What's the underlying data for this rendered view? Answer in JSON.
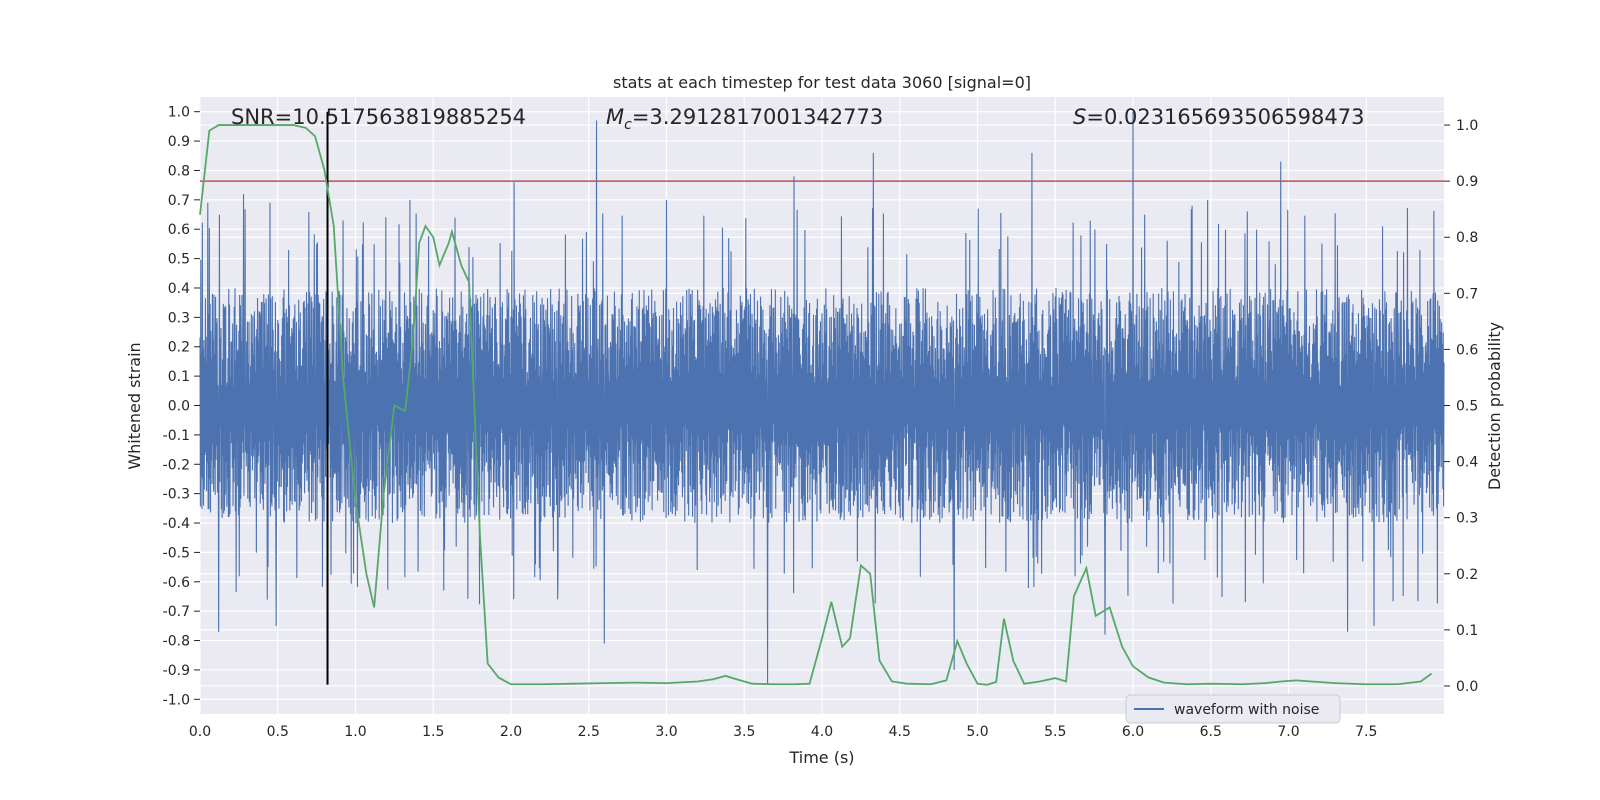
{
  "chart_data": {
    "type": "line",
    "title": "stats at each timestep for test data 3060 [signal=0]",
    "xlabel": "Time (s)",
    "ylabel_left": "Whitened strain",
    "ylabel_right": "Detection probability",
    "xlim": [
      0,
      8
    ],
    "ylim_left": [
      -1.05,
      1.05
    ],
    "ylim_right": [
      -0.05,
      1.05
    ],
    "x_ticks": [
      "0.0",
      "0.5",
      "1.0",
      "1.5",
      "2.0",
      "2.5",
      "3.0",
      "3.5",
      "4.0",
      "4.5",
      "5.0",
      "5.5",
      "6.0",
      "6.5",
      "7.0",
      "7.5"
    ],
    "y_ticks_left": [
      "1.0",
      "0.9",
      "0.8",
      "0.7",
      "0.6",
      "0.5",
      "0.4",
      "0.3",
      "0.2",
      "0.1",
      "0.0",
      "-0.1",
      "-0.2",
      "-0.3",
      "-0.4",
      "-0.5",
      "-0.6",
      "-0.7",
      "-0.8",
      "-0.9",
      "-1.0"
    ],
    "y_ticks_right": [
      "1.0",
      "0.9",
      "0.8",
      "0.7",
      "0.6",
      "0.5",
      "0.4",
      "0.3",
      "0.2",
      "0.1",
      "0.0"
    ],
    "grid": true,
    "legend": {
      "location": "lower-right",
      "entries": [
        "waveform with noise"
      ]
    },
    "annotations": {
      "snr": "SNR=10.517563819885254",
      "mc_symbol": "M",
      "mc_sub": "c",
      "mc_value": "=3.2912817001342773",
      "s_symbol": "S",
      "s_value": "=0.023165693506598473"
    },
    "threshold": {
      "axis": "right",
      "value": 0.9
    },
    "vertical_marker": {
      "x": 0.82,
      "y_range_left": [
        -0.95,
        1.0
      ]
    },
    "waveform": {
      "name": "waveform with noise",
      "x_range": [
        0,
        8
      ],
      "typical_amplitude": 0.4,
      "spikes": [
        {
          "x": 0.05,
          "y": 0.69
        },
        {
          "x": 0.12,
          "y": -0.77
        },
        {
          "x": 0.28,
          "y": 0.72
        },
        {
          "x": 0.45,
          "y": 0.69
        },
        {
          "x": 0.49,
          "y": -0.75
        },
        {
          "x": 0.82,
          "y": -0.66
        },
        {
          "x": 0.92,
          "y": 0.63
        },
        {
          "x": 1.35,
          "y": 0.7
        },
        {
          "x": 2.02,
          "y": 0.76
        },
        {
          "x": 2.3,
          "y": -0.66
        },
        {
          "x": 2.55,
          "y": 0.97
        },
        {
          "x": 2.6,
          "y": -0.81
        },
        {
          "x": 3.0,
          "y": 0.7
        },
        {
          "x": 3.65,
          "y": -0.95
        },
        {
          "x": 3.82,
          "y": 0.78
        },
        {
          "x": 4.33,
          "y": 0.86
        },
        {
          "x": 4.85,
          "y": -0.9
        },
        {
          "x": 5.35,
          "y": 0.86
        },
        {
          "x": 5.82,
          "y": -0.78
        },
        {
          "x": 6.0,
          "y": 1.0
        },
        {
          "x": 6.48,
          "y": 0.7
        },
        {
          "x": 6.95,
          "y": 0.83
        },
        {
          "x": 7.38,
          "y": -0.77
        },
        {
          "x": 7.55,
          "y": -0.75
        }
      ]
    },
    "detection_probability": {
      "color": "#55a868",
      "x": [
        0.0,
        0.06,
        0.12,
        0.2,
        0.3,
        0.4,
        0.5,
        0.6,
        0.68,
        0.74,
        0.8,
        0.86,
        0.92,
        1.0,
        1.07,
        1.12,
        1.18,
        1.25,
        1.32,
        1.37,
        1.41,
        1.45,
        1.5,
        1.54,
        1.6,
        1.62,
        1.68,
        1.73,
        1.8,
        1.85,
        1.92,
        2.0,
        2.2,
        2.4,
        2.6,
        2.8,
        3.0,
        3.2,
        3.3,
        3.38,
        3.45,
        3.55,
        3.7,
        3.82,
        3.92,
        4.0,
        4.06,
        4.13,
        4.18,
        4.25,
        4.31,
        4.37,
        4.45,
        4.55,
        4.7,
        4.8,
        4.87,
        4.93,
        5.0,
        5.06,
        5.12,
        5.17,
        5.23,
        5.3,
        5.4,
        5.5,
        5.57,
        5.62,
        5.7,
        5.76,
        5.85,
        5.93,
        6.0,
        6.1,
        6.2,
        6.35,
        6.5,
        6.7,
        6.85,
        6.95,
        7.05,
        7.15,
        7.3,
        7.5,
        7.7,
        7.85,
        7.92
      ],
      "y": [
        0.84,
        0.99,
        1.0,
        1.0,
        1.0,
        1.0,
        1.0,
        1.0,
        0.995,
        0.98,
        0.92,
        0.82,
        0.55,
        0.33,
        0.2,
        0.14,
        0.34,
        0.5,
        0.49,
        0.62,
        0.79,
        0.82,
        0.8,
        0.75,
        0.79,
        0.81,
        0.75,
        0.72,
        0.27,
        0.04,
        0.015,
        0.003,
        0.003,
        0.004,
        0.005,
        0.006,
        0.005,
        0.008,
        0.012,
        0.018,
        0.012,
        0.004,
        0.003,
        0.003,
        0.004,
        0.085,
        0.15,
        0.07,
        0.085,
        0.215,
        0.2,
        0.045,
        0.008,
        0.004,
        0.003,
        0.01,
        0.08,
        0.04,
        0.004,
        0.002,
        0.007,
        0.12,
        0.045,
        0.004,
        0.008,
        0.014,
        0.008,
        0.16,
        0.21,
        0.125,
        0.14,
        0.07,
        0.035,
        0.015,
        0.006,
        0.003,
        0.004,
        0.003,
        0.005,
        0.008,
        0.01,
        0.008,
        0.005,
        0.003,
        0.003,
        0.008,
        0.022
      ]
    }
  }
}
